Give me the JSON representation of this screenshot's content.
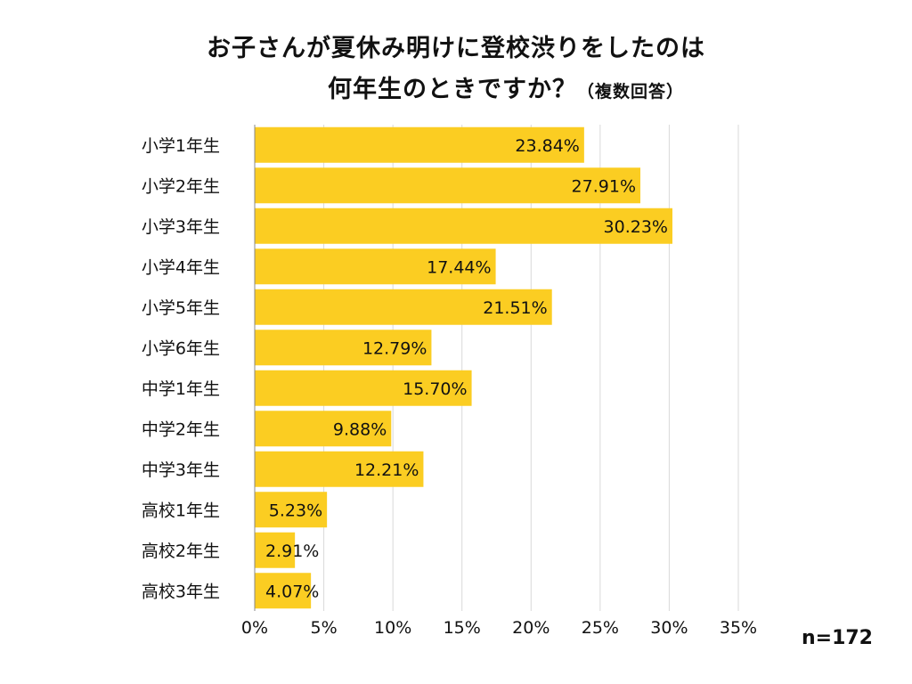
{
  "title": {
    "line1": "お子さんが夏休み明けに登校渋りをしたのは",
    "line2": "何年生のときですか？",
    "note": "（複数回答）"
  },
  "sample_size": "n=172",
  "colors": {
    "bar": "#FBCD22",
    "grid": "#d9d9d9",
    "axis": "#888888"
  },
  "chart_data": {
    "type": "bar",
    "orientation": "horizontal",
    "categories": [
      "小学1年生",
      "小学2年生",
      "小学3年生",
      "小学4年生",
      "小学5年生",
      "小学6年生",
      "中学1年生",
      "中学2年生",
      "中学3年生",
      "高校1年生",
      "高校2年生",
      "高校3年生"
    ],
    "values": [
      23.84,
      27.91,
      30.23,
      17.44,
      21.51,
      12.79,
      15.7,
      9.88,
      12.21,
      5.23,
      2.91,
      4.07
    ],
    "data_labels": [
      "23.84%",
      "27.91%",
      "30.23%",
      "17.44%",
      "21.51%",
      "12.79%",
      "15.70%",
      "9.88%",
      "12.21%",
      "5.23%",
      "2.91%",
      "4.07%"
    ],
    "xlim": [
      0,
      35
    ],
    "xticks": [
      0,
      5,
      10,
      15,
      20,
      25,
      30,
      35
    ],
    "xtick_labels": [
      "0%",
      "5%",
      "10%",
      "15%",
      "20%",
      "25%",
      "30%",
      "35%"
    ],
    "grid": true,
    "legend": "none"
  }
}
